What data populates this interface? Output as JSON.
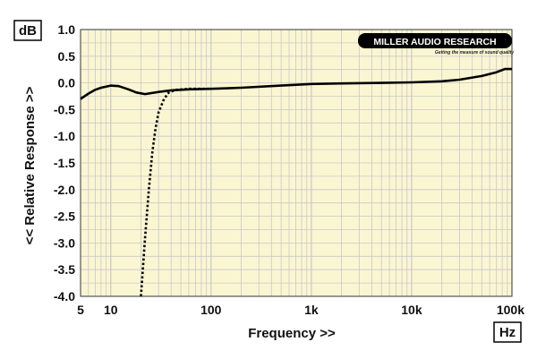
{
  "chart_data": {
    "type": "line",
    "title": "",
    "xlabel": "Frequency >>",
    "ylabel": "<< Relative Response >>",
    "y_unit_label": "dB",
    "x_unit_label": "Hz",
    "x_scale": "log",
    "xlim": [
      5,
      100000
    ],
    "ylim": [
      -4.0,
      1.0
    ],
    "grid": true,
    "plot_background": "#fbf6d2",
    "grid_color": "#c8c8c8",
    "line_color": "#000000",
    "x_tick_labels": [
      {
        "value": 5,
        "label": "5"
      },
      {
        "value": 10,
        "label": "10"
      },
      {
        "value": 100,
        "label": "100"
      },
      {
        "value": 1000,
        "label": "1k"
      },
      {
        "value": 10000,
        "label": "10k"
      },
      {
        "value": 100000,
        "label": "100k"
      }
    ],
    "y_tick_labels": [
      {
        "value": 1.0,
        "label": "1.0"
      },
      {
        "value": 0.5,
        "label": "0.5"
      },
      {
        "value": 0.0,
        "label": "0.0"
      },
      {
        "value": -0.5,
        "label": "-0.5"
      },
      {
        "value": -1.0,
        "label": "-1.0"
      },
      {
        "value": -1.5,
        "label": "-1.5"
      },
      {
        "value": -2.0,
        "label": "-2.0"
      },
      {
        "value": -2.5,
        "label": "-2.5"
      },
      {
        "value": -3.0,
        "label": "-3.0"
      },
      {
        "value": -3.5,
        "label": "-3.5"
      },
      {
        "value": -4.0,
        "label": "-4.0"
      }
    ],
    "series": [
      {
        "style": "solid",
        "points": [
          [
            5,
            -0.3
          ],
          [
            6,
            -0.2
          ],
          [
            7,
            -0.13
          ],
          [
            8,
            -0.09
          ],
          [
            10,
            -0.05
          ],
          [
            12,
            -0.06
          ],
          [
            15,
            -0.12
          ],
          [
            18,
            -0.18
          ],
          [
            22,
            -0.21
          ],
          [
            30,
            -0.17
          ],
          [
            40,
            -0.14
          ],
          [
            60,
            -0.12
          ],
          [
            100,
            -0.11
          ],
          [
            200,
            -0.09
          ],
          [
            500,
            -0.05
          ],
          [
            1000,
            -0.02
          ],
          [
            2000,
            -0.01
          ],
          [
            5000,
            0.0
          ],
          [
            10000,
            0.01
          ],
          [
            20000,
            0.03
          ],
          [
            30000,
            0.06
          ],
          [
            50000,
            0.13
          ],
          [
            70000,
            0.2
          ],
          [
            85000,
            0.26
          ],
          [
            100000,
            0.26
          ]
        ]
      },
      {
        "style": "dotted",
        "points": [
          [
            20,
            -4.0
          ],
          [
            22,
            -2.9
          ],
          [
            24,
            -2.0
          ],
          [
            26,
            -1.3
          ],
          [
            28,
            -0.85
          ],
          [
            30,
            -0.55
          ],
          [
            34,
            -0.3
          ],
          [
            38,
            -0.18
          ],
          [
            45,
            -0.13
          ],
          [
            60,
            -0.11
          ],
          [
            100,
            -0.11
          ]
        ]
      }
    ]
  },
  "logo": {
    "name": "MILLER AUDIO RESEARCH",
    "tagline": "Getting the measure of sound quality"
  }
}
